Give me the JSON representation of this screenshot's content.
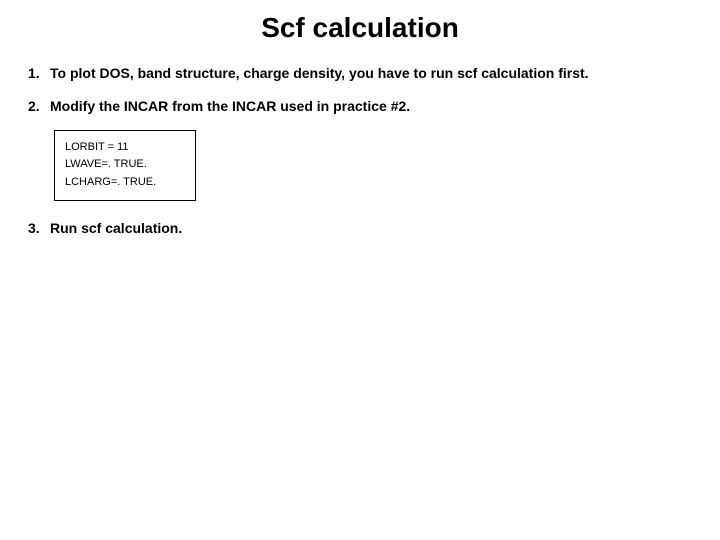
{
  "title": "Scf calculation",
  "items": [
    {
      "number": "1.",
      "text": "To plot DOS, band structure, charge density, you have to run scf calculation first."
    },
    {
      "number": "2.",
      "text": "Modify the INCAR from the INCAR used in practice #2."
    },
    {
      "number": "3.",
      "text": "Run scf calculation."
    }
  ],
  "code_lines": [
    "LORBIT = 11",
    "LWAVE=. TRUE.",
    "LCHARG=. TRUE."
  ],
  "colors": {
    "background": "#ffffff",
    "text": "#000000",
    "border": "#000000"
  },
  "typography": {
    "title_fontsize": 28,
    "title_weight": "bold",
    "body_fontsize": 14,
    "body_weight": "bold",
    "code_fontsize": 11,
    "code_weight": "normal",
    "font_family": "Arial"
  }
}
